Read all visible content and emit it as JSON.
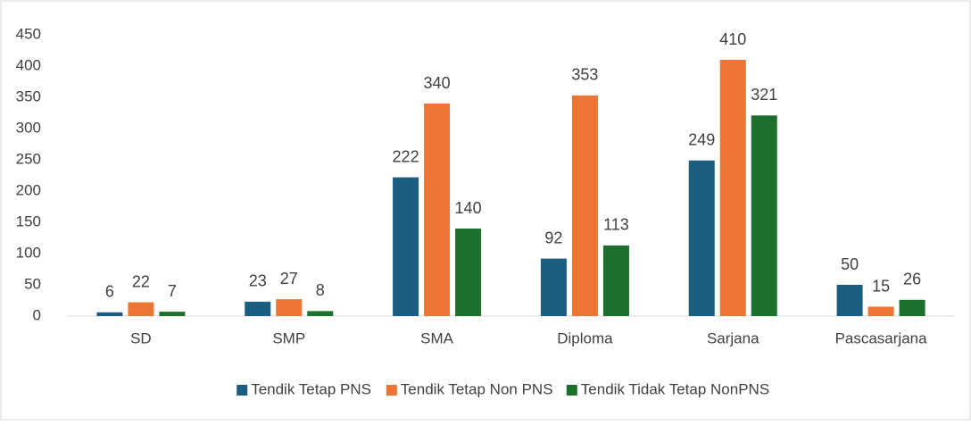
{
  "chart_data": {
    "type": "bar",
    "categories": [
      "SD",
      "SMP",
      "SMA",
      "Diploma",
      "Sarjana",
      "Pascasarjana"
    ],
    "series": [
      {
        "name": "Tendik Tetap PNS",
        "color": "#1b5e82",
        "values": [
          6,
          23,
          222,
          92,
          249,
          50
        ]
      },
      {
        "name": "Tendik Tetap Non PNS",
        "color": "#ec7434",
        "values": [
          22,
          27,
          340,
          353,
          410,
          15
        ]
      },
      {
        "name": "Tendik Tidak Tetap NonPNS",
        "color": "#1e6e2d",
        "values": [
          7,
          8,
          140,
          113,
          321,
          26
        ]
      }
    ],
    "ylim": [
      0,
      450
    ],
    "yticks": [
      0,
      50,
      100,
      150,
      200,
      250,
      300,
      350,
      400,
      450
    ],
    "grid": false,
    "legend": "bottom"
  }
}
